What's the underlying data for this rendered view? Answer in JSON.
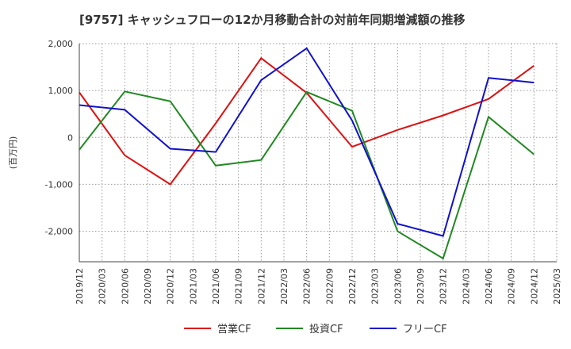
{
  "chart_data": {
    "type": "line",
    "title": "[9757]  キャッシュフローの12か月移動合計の対前年同期増減額の推移",
    "ylabel": "(百万円)",
    "xlabel": "",
    "ylim": [
      -2650,
      2000
    ],
    "yticks": [
      2000,
      1000,
      0,
      -1000,
      -2000
    ],
    "ytick_labels": [
      "2,000",
      "1,000",
      "0",
      "-1,000",
      "-2,000"
    ],
    "xticks": [
      "2019/12",
      "2020/03",
      "2020/06",
      "2020/09",
      "2020/12",
      "2021/03",
      "2021/06",
      "2021/09",
      "2021/12",
      "2022/03",
      "2022/06",
      "2022/09",
      "2022/12",
      "2023/03",
      "2023/06",
      "2023/09",
      "2023/12",
      "2024/03",
      "2024/06",
      "2024/09",
      "2024/12",
      "2025/03"
    ],
    "grid": true,
    "legend_position": "bottom-center",
    "series": [
      {
        "name": "営業CF",
        "color": "#dd1111",
        "points": [
          {
            "x": "2019/12",
            "y": 960
          },
          {
            "x": "2020/06",
            "y": -380
          },
          {
            "x": "2020/12",
            "y": -1000
          },
          {
            "x": "2021/06",
            "y": 300
          },
          {
            "x": "2021/12",
            "y": 1690
          },
          {
            "x": "2022/06",
            "y": 950
          },
          {
            "x": "2022/12",
            "y": -200
          },
          {
            "x": "2023/06",
            "y": 160
          },
          {
            "x": "2023/12",
            "y": 470
          },
          {
            "x": "2024/06",
            "y": 820
          },
          {
            "x": "2024/12",
            "y": 1530
          }
        ]
      },
      {
        "name": "投資CF",
        "color": "#228822",
        "points": [
          {
            "x": "2019/12",
            "y": -260
          },
          {
            "x": "2020/06",
            "y": 980
          },
          {
            "x": "2020/12",
            "y": 770
          },
          {
            "x": "2021/06",
            "y": -600
          },
          {
            "x": "2021/12",
            "y": -480
          },
          {
            "x": "2022/06",
            "y": 970
          },
          {
            "x": "2022/12",
            "y": 570
          },
          {
            "x": "2023/06",
            "y": -2000
          },
          {
            "x": "2023/12",
            "y": -2580
          },
          {
            "x": "2024/06",
            "y": 440
          },
          {
            "x": "2024/12",
            "y": -360
          }
        ]
      },
      {
        "name": "フリーCF",
        "color": "#1111cc",
        "points": [
          {
            "x": "2019/12",
            "y": 690
          },
          {
            "x": "2020/06",
            "y": 590
          },
          {
            "x": "2020/12",
            "y": -240
          },
          {
            "x": "2021/06",
            "y": -310
          },
          {
            "x": "2021/12",
            "y": 1220
          },
          {
            "x": "2022/06",
            "y": 1900
          },
          {
            "x": "2022/12",
            "y": 360
          },
          {
            "x": "2023/06",
            "y": -1840
          },
          {
            "x": "2023/12",
            "y": -2100
          },
          {
            "x": "2024/06",
            "y": 1270
          },
          {
            "x": "2024/12",
            "y": 1170
          }
        ]
      }
    ]
  }
}
